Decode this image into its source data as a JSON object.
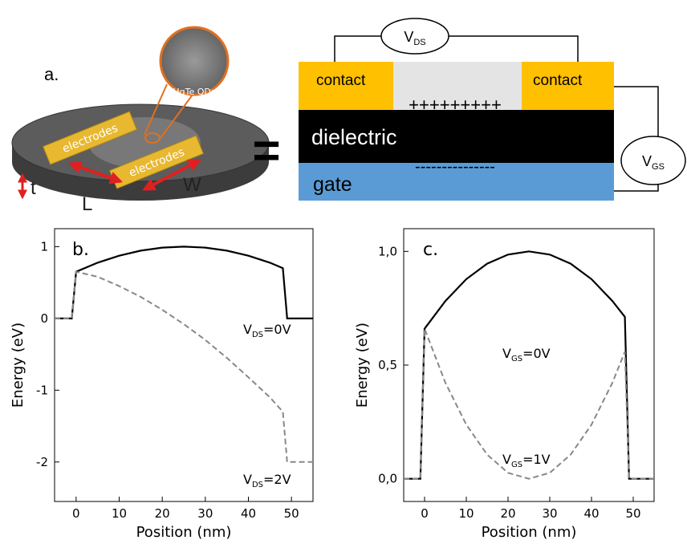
{
  "panel_a": {
    "label": "a.",
    "inset_label": "HgTe QDs",
    "electrode_labels": [
      "electrodes",
      "electrodes"
    ],
    "dimensions": [
      "t",
      "L",
      "W"
    ],
    "equals": "=",
    "device": {
      "contacts": [
        "contact",
        "contact"
      ],
      "charges_top": "+++++++++",
      "dielectric": "dielectric",
      "charges_bottom": "---------------",
      "gate": "gate",
      "vds": {
        "main": "V",
        "sub": "DS"
      },
      "vgs": {
        "main": "V",
        "sub": "GS"
      }
    }
  },
  "chart_data": [
    {
      "type": "line",
      "panel_label": "b.",
      "x_label": "Position (nm)",
      "y_label": "Energy (eV)",
      "xlim": [
        -5,
        55
      ],
      "ylim": [
        -2.55,
        1.25
      ],
      "xticks": [
        0,
        10,
        20,
        30,
        40,
        50
      ],
      "yticks": [
        -2,
        -1,
        0,
        1
      ],
      "series": [
        {
          "color": "#000000",
          "linestyle": "solid",
          "x": [
            -5,
            -1,
            0,
            5,
            10,
            15,
            20,
            25,
            30,
            35,
            40,
            45,
            48,
            49,
            55
          ],
          "values": [
            0,
            0,
            0.65,
            0.776,
            0.874,
            0.944,
            0.986,
            1,
            0.986,
            0.944,
            0.874,
            0.776,
            0.7,
            0,
            0
          ]
        },
        {
          "color": "#888888",
          "linestyle": "dashed",
          "x": [
            -5,
            -1,
            0,
            5,
            10,
            15,
            20,
            25,
            30,
            35,
            40,
            45,
            48,
            49,
            55
          ],
          "values": [
            0,
            0,
            0.65,
            0.58,
            0.45,
            0.3,
            0.12,
            -0.08,
            -0.3,
            -0.55,
            -0.82,
            -1.1,
            -1.3,
            -2,
            -2
          ]
        }
      ],
      "annotations": [
        {
          "main": "V",
          "sub": "DS",
          "rest": "=0V"
        },
        {
          "main": "V",
          "sub": "DS",
          "rest": "=2V"
        }
      ]
    },
    {
      "type": "line",
      "panel_label": "c.",
      "x_label": "Position (nm)",
      "y_label": "Energy (eV)",
      "xlim": [
        -5,
        55
      ],
      "ylim": [
        -0.1,
        1.1
      ],
      "xticks": [
        0,
        10,
        20,
        30,
        40,
        50
      ],
      "yticks": [
        {
          "value": 0,
          "label": "0,0"
        },
        {
          "value": 0.5,
          "label": "0,5"
        },
        {
          "value": 1,
          "label": "1,0"
        }
      ],
      "series": [
        {
          "color": "#000000",
          "linestyle": "solid",
          "x": [
            -5,
            -1,
            0,
            5,
            10,
            15,
            20,
            25,
            30,
            35,
            40,
            45,
            48,
            49,
            55
          ],
          "values": [
            0,
            0,
            0.66,
            0.782,
            0.878,
            0.946,
            0.986,
            1,
            0.986,
            0.946,
            0.878,
            0.782,
            0.712,
            0,
            0
          ]
        },
        {
          "color": "#888888",
          "linestyle": "dashed",
          "x": [
            -5,
            -1,
            0,
            5,
            10,
            15,
            20,
            25,
            30,
            35,
            40,
            45,
            48,
            49,
            55
          ],
          "values": [
            0,
            0,
            0.66,
            0.422,
            0.238,
            0.106,
            0.026,
            0,
            0.026,
            0.106,
            0.238,
            0.422,
            0.559,
            0,
            0
          ]
        }
      ],
      "annotations": [
        {
          "main": "V",
          "sub": "GS",
          "rest": "=0V"
        },
        {
          "main": "V",
          "sub": "GS",
          "rest": "=1V"
        }
      ]
    }
  ]
}
